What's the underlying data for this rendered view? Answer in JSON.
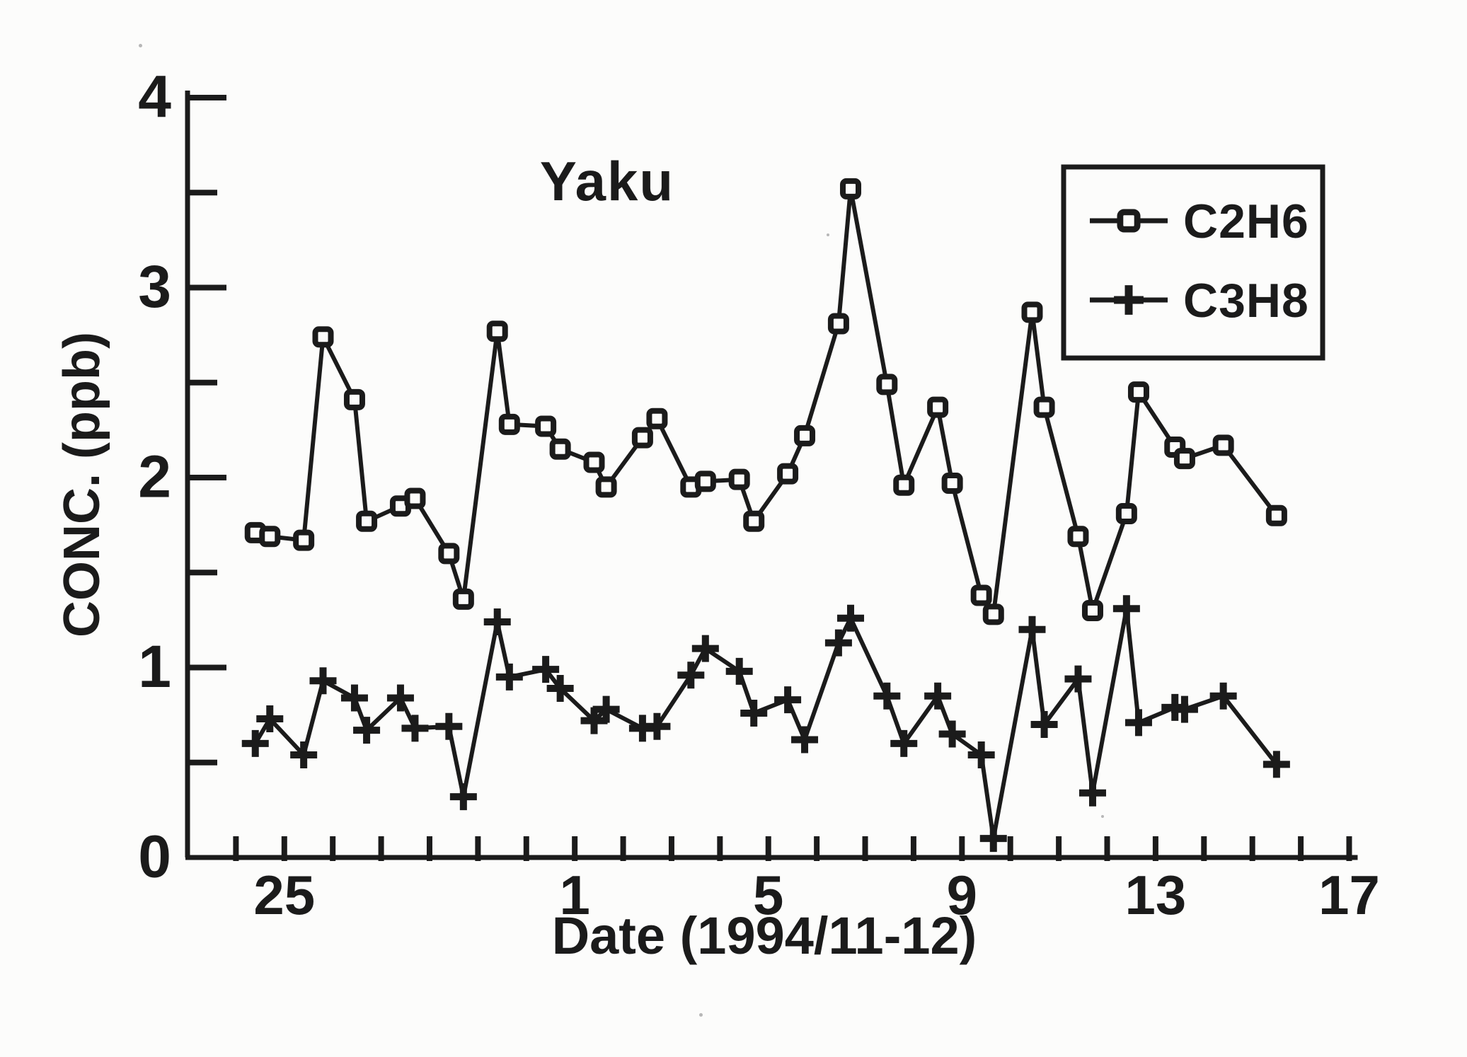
{
  "figure": {
    "title": "Yaku",
    "ink_color": "#1b1b1b",
    "background_color": "#fcfcfb"
  },
  "chart_data": {
    "type": "line",
    "title": "Yaku",
    "xlabel": "Date (1994/11-12)",
    "ylabel": "CONC. (ppb)",
    "xlim": [
      23,
      47.3
    ],
    "ylim": [
      0,
      4
    ],
    "grid": false,
    "x_axis_note": "x encoded as continuous day number of Nov 1994; 31 = Dec 1, 47 = Dec 17",
    "x_tick_labels": [
      {
        "value": 25,
        "label": "25"
      },
      {
        "value": 31,
        "label": "1"
      },
      {
        "value": 35,
        "label": "5"
      },
      {
        "value": 39,
        "label": "9"
      },
      {
        "value": 43,
        "label": "13"
      },
      {
        "value": 47,
        "label": "17"
      }
    ],
    "x_minor_tick_start": 24,
    "x_minor_tick_end": 47,
    "y_major_ticks": [
      0,
      1,
      2,
      3,
      4
    ],
    "y_major_tick_labels": [
      "0",
      "1",
      "2",
      "3",
      "4"
    ],
    "y_minor_ticks": [
      0.5,
      1.5,
      2.5,
      3.5
    ],
    "legend": {
      "position": "top-right",
      "entries": [
        {
          "label": "C2H6",
          "marker": "square"
        },
        {
          "label": "C3H8",
          "marker": "plus"
        }
      ]
    },
    "x": [
      24.4,
      24.7,
      25.4,
      25.8,
      26.45,
      26.7,
      27.4,
      27.7,
      28.4,
      28.7,
      29.4,
      29.65,
      30.4,
      30.7,
      31.4,
      31.65,
      32.4,
      32.7,
      33.4,
      33.7,
      34.4,
      34.7,
      35.4,
      35.75,
      36.45,
      36.7,
      37.45,
      37.8,
      38.5,
      38.8,
      39.4,
      39.65,
      40.45,
      40.7,
      41.4,
      41.7,
      42.4,
      42.65,
      43.4,
      43.6,
      44.4,
      45.5
    ],
    "series": [
      {
        "name": "C2H6",
        "marker": "square",
        "values": [
          1.71,
          1.69,
          1.67,
          2.74,
          2.41,
          1.77,
          1.85,
          1.89,
          1.6,
          1.36,
          2.77,
          2.28,
          2.27,
          2.15,
          2.08,
          1.95,
          2.21,
          2.31,
          1.95,
          1.98,
          1.99,
          1.77,
          2.02,
          2.22,
          2.81,
          3.52,
          2.49,
          1.96,
          2.37,
          1.97,
          1.38,
          1.28,
          2.87,
          2.37,
          1.69,
          1.3,
          1.81,
          2.45,
          2.16,
          2.1,
          2.17,
          1.8
        ]
      },
      {
        "name": "C3H8",
        "marker": "plus",
        "values": [
          0.6,
          0.73,
          0.54,
          0.93,
          0.84,
          0.67,
          0.84,
          0.68,
          0.69,
          0.32,
          1.24,
          0.95,
          0.99,
          0.89,
          0.72,
          0.78,
          0.68,
          0.69,
          0.96,
          1.1,
          0.98,
          0.76,
          0.83,
          0.62,
          1.13,
          1.26,
          0.85,
          0.6,
          0.85,
          0.65,
          0.54,
          0.1,
          1.2,
          0.7,
          0.94,
          0.34,
          1.31,
          0.71,
          0.79,
          0.78,
          0.85,
          0.49
        ]
      }
    ]
  }
}
